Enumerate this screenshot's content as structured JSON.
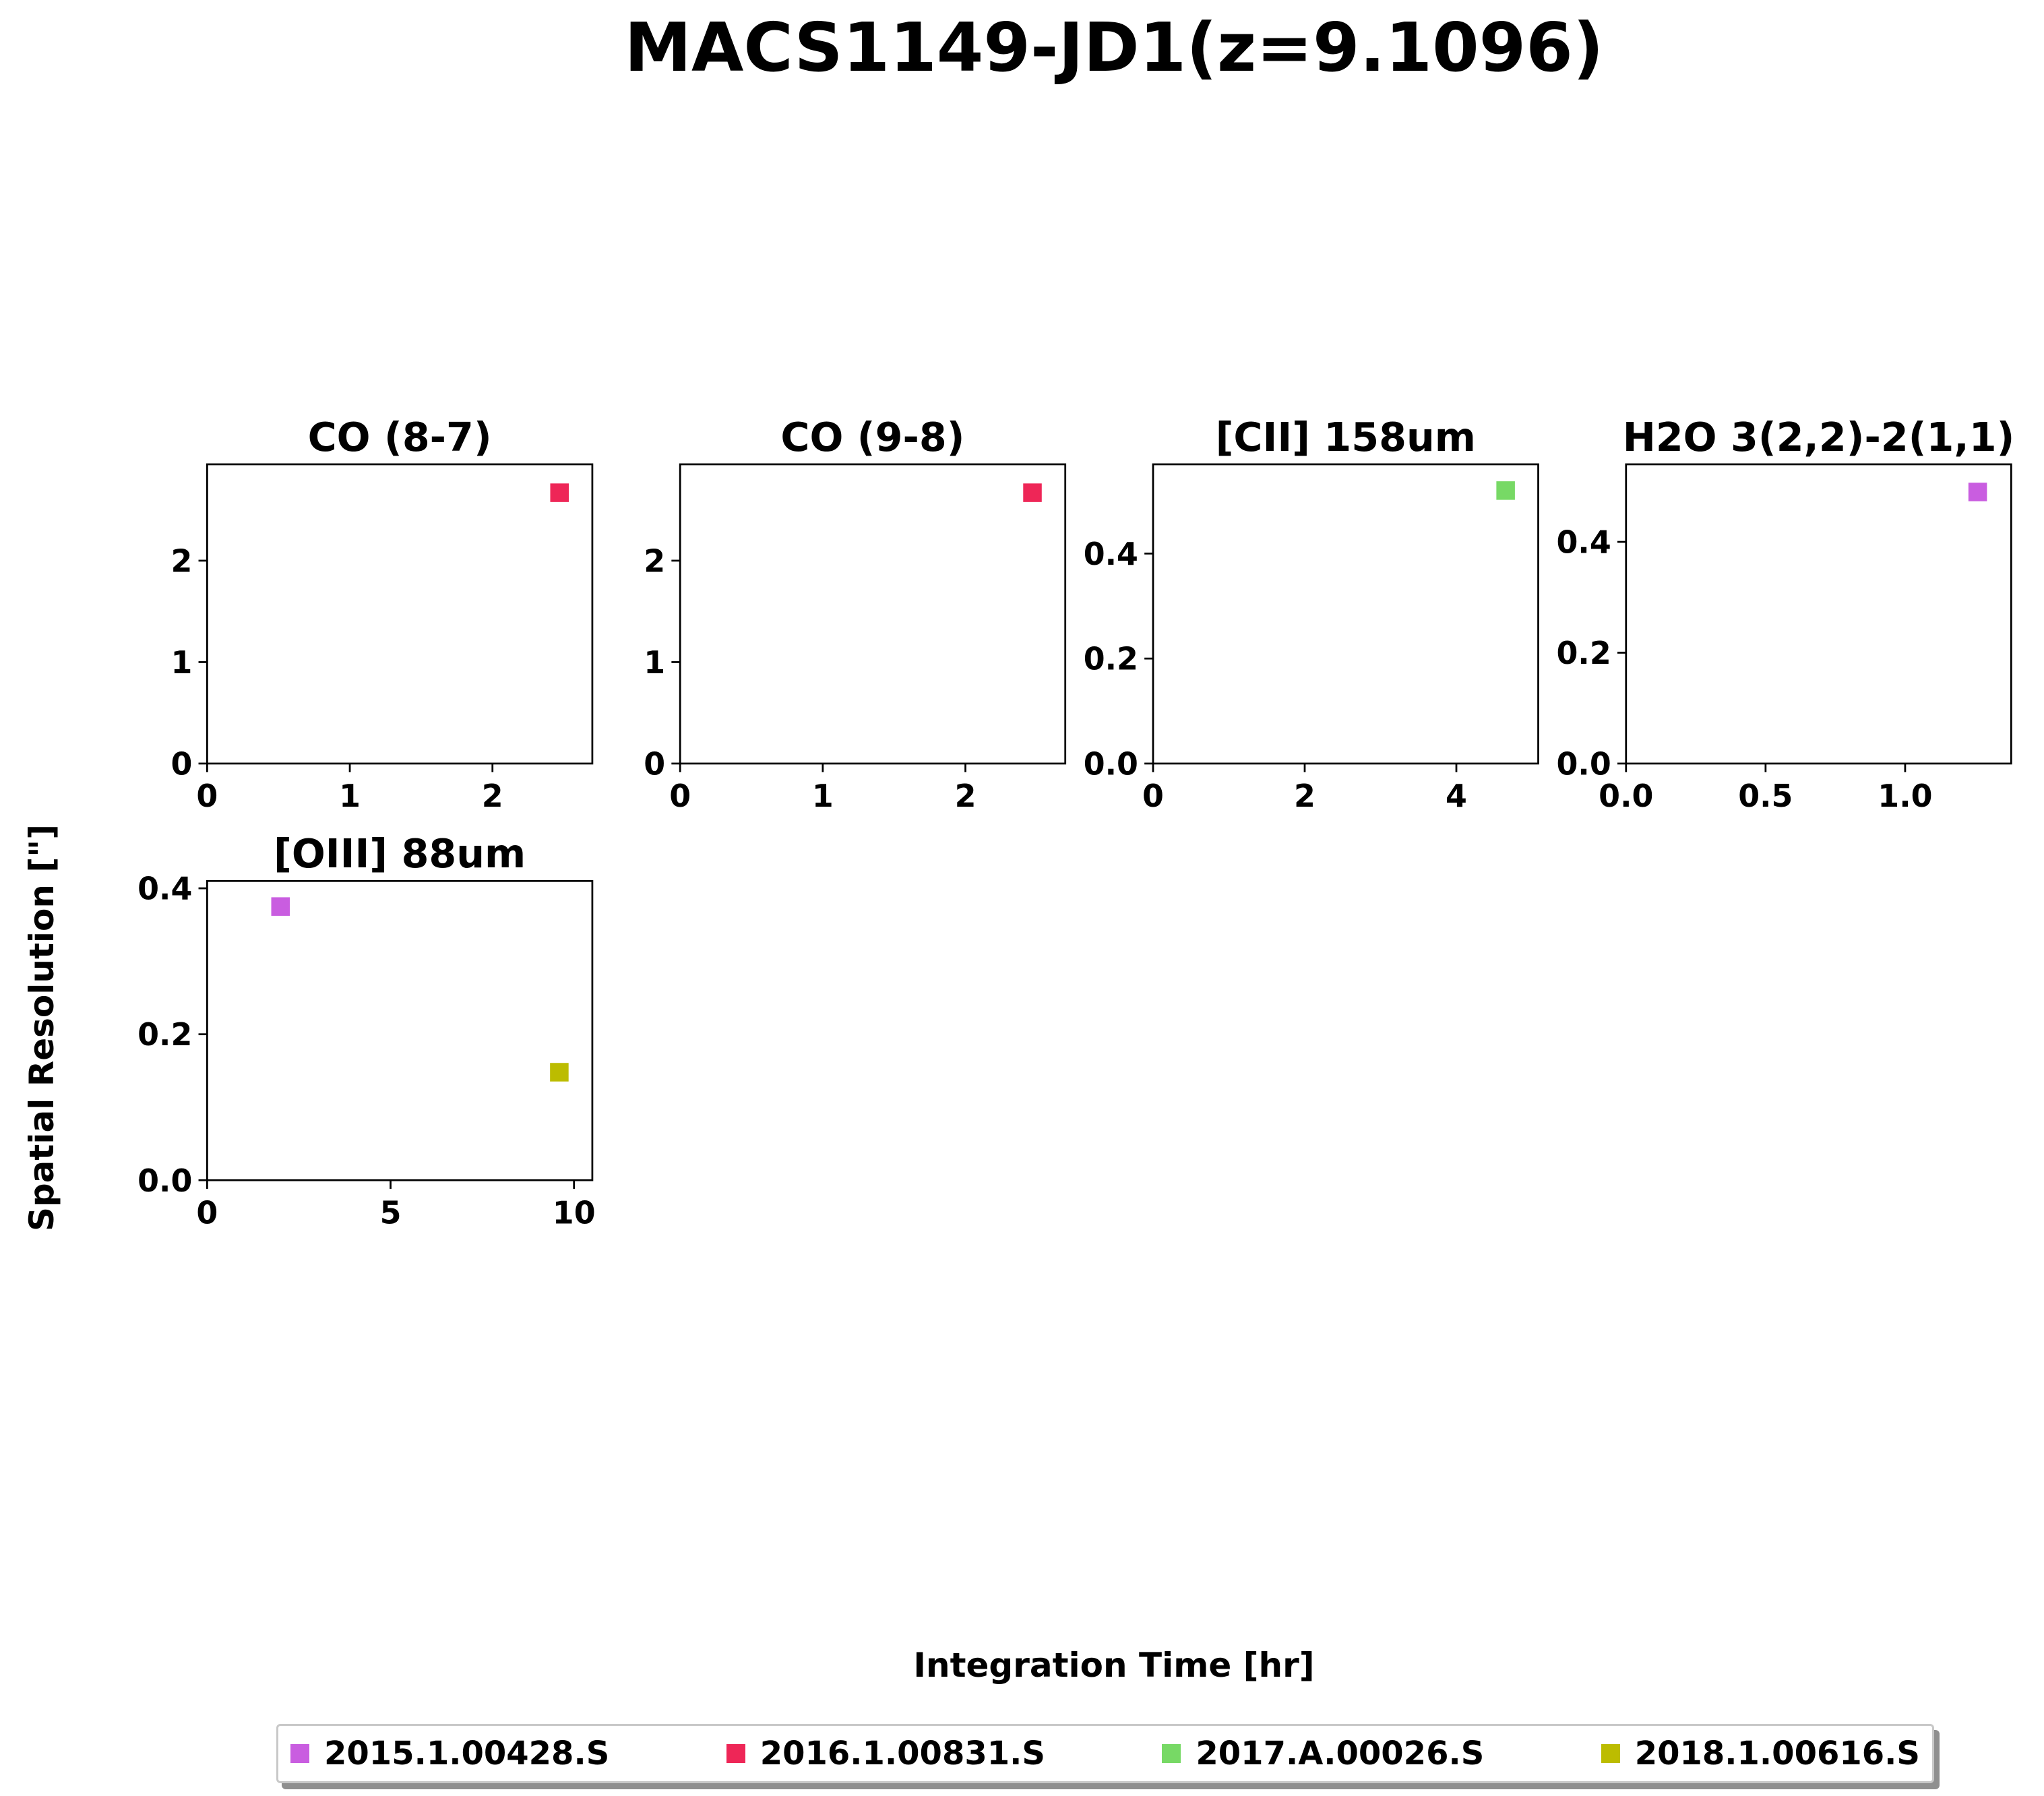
{
  "figure_title": "MACS1149-JD1(z=9.1096)",
  "xlabel": "Integration Time [hr]",
  "ylabel": "Spatial Resolution [\"]",
  "legend": [
    {
      "label": "2015.1.00428.S",
      "color": "#c95de0"
    },
    {
      "label": "2016.1.00831.S",
      "color": "#ee2657"
    },
    {
      "label": "2017.A.00026.S",
      "color": "#77d965"
    },
    {
      "label": "2018.1.00616.S",
      "color": "#bcbc00"
    }
  ],
  "chart_data": [
    {
      "type": "scatter",
      "title": "CO (8-7)",
      "xlim": [
        0,
        2.7
      ],
      "ylim": [
        0,
        2.95
      ],
      "xticks": [
        0,
        1,
        2
      ],
      "xtick_labels": [
        "0",
        "1",
        "2"
      ],
      "yticks": [
        0,
        1,
        2
      ],
      "ytick_labels": [
        "0",
        "1",
        "2"
      ],
      "series": [
        {
          "name": "2016.1.00831.S",
          "color": "#ee2657",
          "points": [
            [
              2.47,
              2.67
            ]
          ]
        }
      ]
    },
    {
      "type": "scatter",
      "title": "CO (9-8)",
      "xlim": [
        0,
        2.7
      ],
      "ylim": [
        0,
        2.95
      ],
      "xticks": [
        0,
        1,
        2
      ],
      "xtick_labels": [
        "0",
        "1",
        "2"
      ],
      "yticks": [
        0,
        1,
        2
      ],
      "ytick_labels": [
        "0",
        "1",
        "2"
      ],
      "series": [
        {
          "name": "2016.1.00831.S",
          "color": "#ee2657",
          "points": [
            [
              2.47,
              2.67
            ]
          ]
        }
      ]
    },
    {
      "type": "scatter",
      "title": "[CII] 158um",
      "xlim": [
        0,
        5.08
      ],
      "ylim": [
        0,
        0.57
      ],
      "xticks": [
        0,
        2,
        4
      ],
      "xtick_labels": [
        "0",
        "2",
        "4"
      ],
      "yticks": [
        0.0,
        0.2,
        0.4
      ],
      "ytick_labels": [
        "0.0",
        "0.2",
        "0.4"
      ],
      "series": [
        {
          "name": "2017.A.00026.S",
          "color": "#77d965",
          "points": [
            [
              4.65,
              0.52
            ]
          ]
        }
      ]
    },
    {
      "type": "scatter",
      "title": "H2O 3(2,2)-2(1,1)",
      "xlim": [
        0,
        1.38
      ],
      "ylim": [
        0,
        0.54
      ],
      "xticks": [
        0.0,
        0.5,
        1.0
      ],
      "xtick_labels": [
        "0.0",
        "0.5",
        "1.0"
      ],
      "yticks": [
        0.0,
        0.2,
        0.4
      ],
      "ytick_labels": [
        "0.0",
        "0.2",
        "0.4"
      ],
      "series": [
        {
          "name": "2015.1.00428.S",
          "color": "#c95de0",
          "points": [
            [
              1.26,
              0.49
            ]
          ]
        }
      ]
    },
    {
      "type": "scatter",
      "title": "[OIII] 88um",
      "xlim": [
        0,
        10.5
      ],
      "ylim": [
        0,
        0.41
      ],
      "xticks": [
        0,
        5,
        10
      ],
      "xtick_labels": [
        "0",
        "5",
        "10"
      ],
      "yticks": [
        0.0,
        0.2,
        0.4
      ],
      "ytick_labels": [
        "0.0",
        "0.2",
        "0.4"
      ],
      "series": [
        {
          "name": "2015.1.00428.S",
          "color": "#c95de0",
          "points": [
            [
              2.0,
              0.375
            ]
          ]
        },
        {
          "name": "2018.1.00616.S",
          "color": "#bcbc00",
          "points": [
            [
              9.6,
              0.148
            ]
          ]
        }
      ]
    }
  ]
}
